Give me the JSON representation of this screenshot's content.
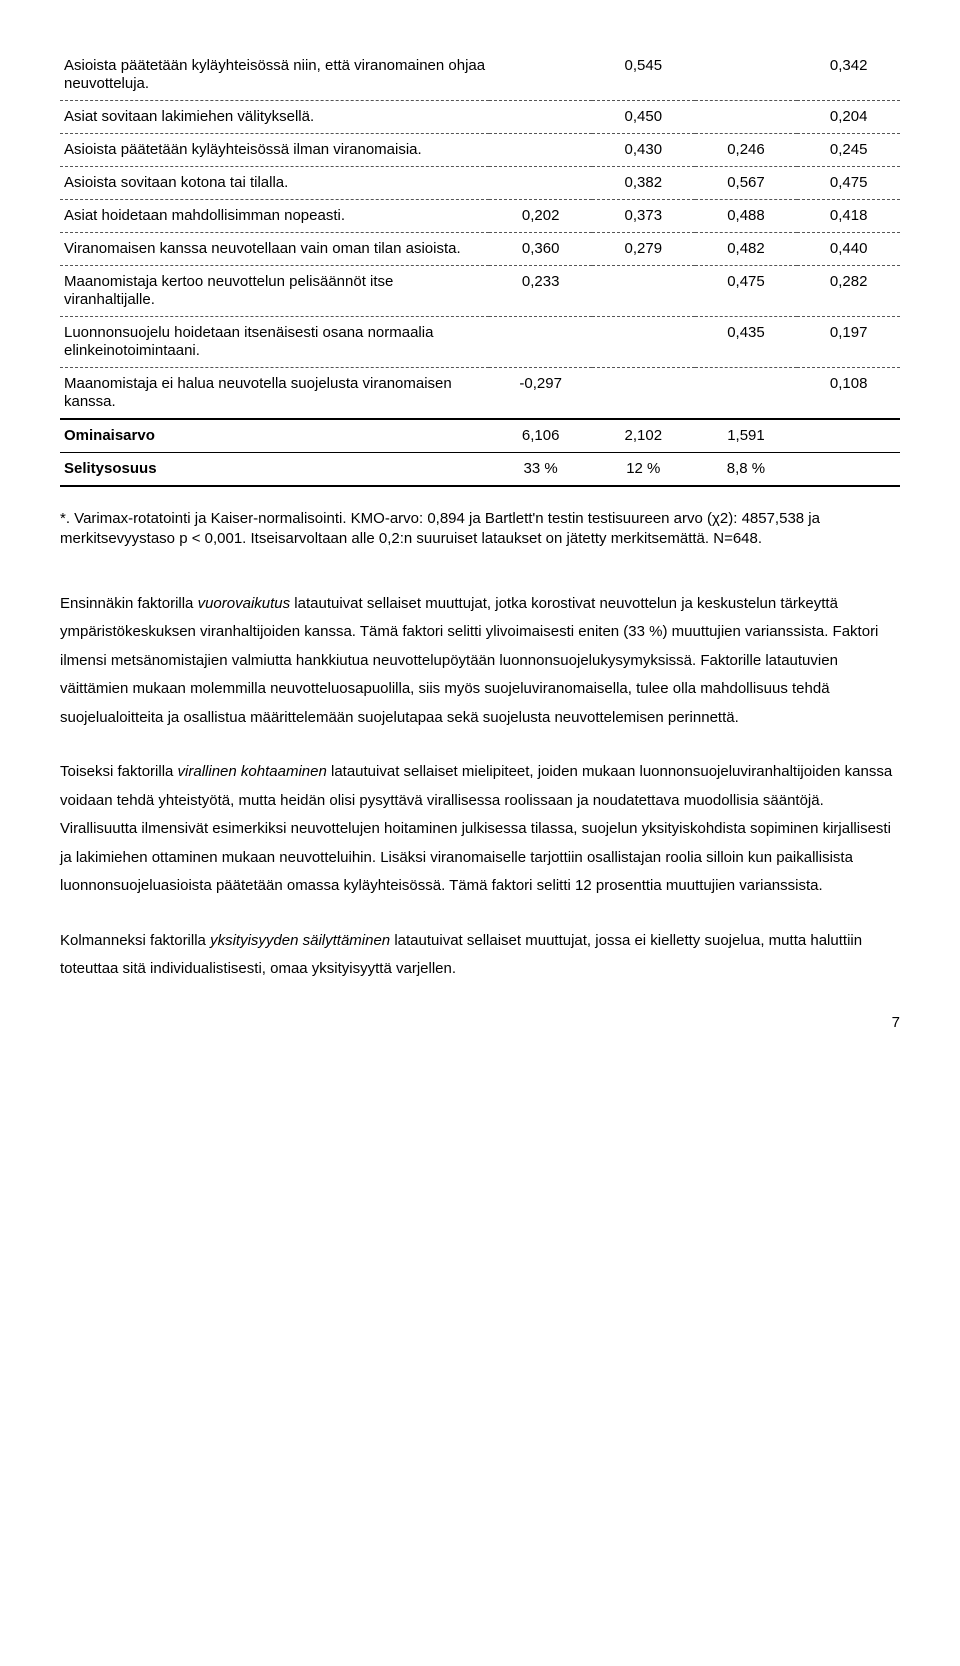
{
  "table": {
    "rows": [
      {
        "label": "Asioista päätetään kyläyhteisössä niin, että viranomainen ohjaa neuvotteluja.",
        "c1": "",
        "c2": "0,545",
        "c3": "",
        "c4": "0,342"
      },
      {
        "label": "Asiat sovitaan lakimiehen välityksellä.",
        "c1": "",
        "c2": "0,450",
        "c3": "",
        "c4": "0,204"
      },
      {
        "label": "Asioista päätetään kyläyhteisössä ilman viranomaisia.",
        "c1": "",
        "c2": "0,430",
        "c3": "0,246",
        "c4": "0,245"
      },
      {
        "label": "Asioista sovitaan kotona tai tilalla.",
        "c1": "",
        "c2": "0,382",
        "c3": "0,567",
        "c4": "0,475"
      },
      {
        "label": "Asiat hoidetaan mahdollisimman nopeasti.",
        "c1": "0,202",
        "c2": "0,373",
        "c3": "0,488",
        "c4": "0,418"
      },
      {
        "label": "Viranomaisen kanssa neuvotellaan vain oman tilan asioista.",
        "c1": "0,360",
        "c2": "0,279",
        "c3": "0,482",
        "c4": "0,440"
      },
      {
        "label": "Maanomistaja kertoo neuvottelun pelisäännöt itse viranhaltijalle.",
        "c1": "0,233",
        "c2": "",
        "c3": "0,475",
        "c4": "0,282"
      },
      {
        "label": "Luonnonsuojelu hoidetaan itsenäisesti osana normaalia elinkeinotoimintaani.",
        "c1": "",
        "c2": "",
        "c3": "0,435",
        "c4": "0,197"
      },
      {
        "label": "Maanomistaja ei halua neuvotella suojelusta viranomaisen kanssa.",
        "c1": "-0,297",
        "c2": "",
        "c3": "",
        "c4": "0,108"
      }
    ],
    "eigen": {
      "label": "Ominaisarvo",
      "c1": "6,106",
      "c2": "2,102",
      "c3": "1,591",
      "c4": ""
    },
    "explain": {
      "label": "Selitysosuus",
      "c1": "33 %",
      "c2": "12 %",
      "c3": "8,8 %",
      "c4": ""
    }
  },
  "footnote": "*. Varimax-rotatointi ja Kaiser-normalisointi. KMO-arvo: 0,894 ja Bartlett'n testin testisuureen arvo (χ2): 4857,538 ja merkitsevyystaso p < 0,001. Itseisarvoltaan alle 0,2:n suuruiset lataukset on jätetty merkitsemättä. N=648.",
  "para1": {
    "pre": "Ensinnäkin faktorilla ",
    "it": "vuorovaikutus",
    "post": " latautuivat sellaiset muuttujat, jotka korostivat neuvottelun ja keskustelun tärkeyttä ympäristökeskuksen viranhaltijoiden kanssa. Tämä faktori selitti ylivoimaisesti eniten (33 %) muuttujien varianssista. Faktori ilmensi metsänomistajien valmiutta hankkiutua neuvottelupöytään luonnonsuojelukysymyksissä. Faktorille latautuvien väittämien mukaan molemmilla neuvotteluosapuolilla, siis myös suojeluviranomaisella, tulee olla mahdollisuus tehdä suojelualoitteita ja osallistua määrittelemään suojelutapaa sekä suojelusta neuvottelemisen perinnettä."
  },
  "para2": {
    "pre": "Toiseksi faktorilla ",
    "it": "virallinen kohtaaminen",
    "post": " latautuivat sellaiset mielipiteet, joiden mukaan luonnonsuojeluviranhaltijoiden kanssa voidaan tehdä yhteistyötä, mutta heidän olisi pysyttävä virallisessa roolissaan ja noudatettava muodollisia sääntöjä. Virallisuutta ilmensivät esimerkiksi neuvottelujen hoitaminen julkisessa tilassa, suojelun yksityiskohdista sopiminen kirjallisesti ja lakimiehen ottaminen mukaan neuvotteluihin. Lisäksi viranomaiselle tarjottiin osallistajan roolia silloin kun paikallisista luonnonsuojeluasioista päätetään omassa kyläyhteisössä. Tämä faktori selitti 12 prosenttia muuttujien varianssista."
  },
  "para3": {
    "pre": "Kolmanneksi faktorilla ",
    "it": "yksityisyyden säilyttäminen",
    "post": " latautuivat sellaiset muuttujat, jossa ei kielletty suojelua, mutta haluttiin toteuttaa sitä individualistisesti, omaa yksityisyyttä varjellen."
  },
  "pagenum": "7"
}
